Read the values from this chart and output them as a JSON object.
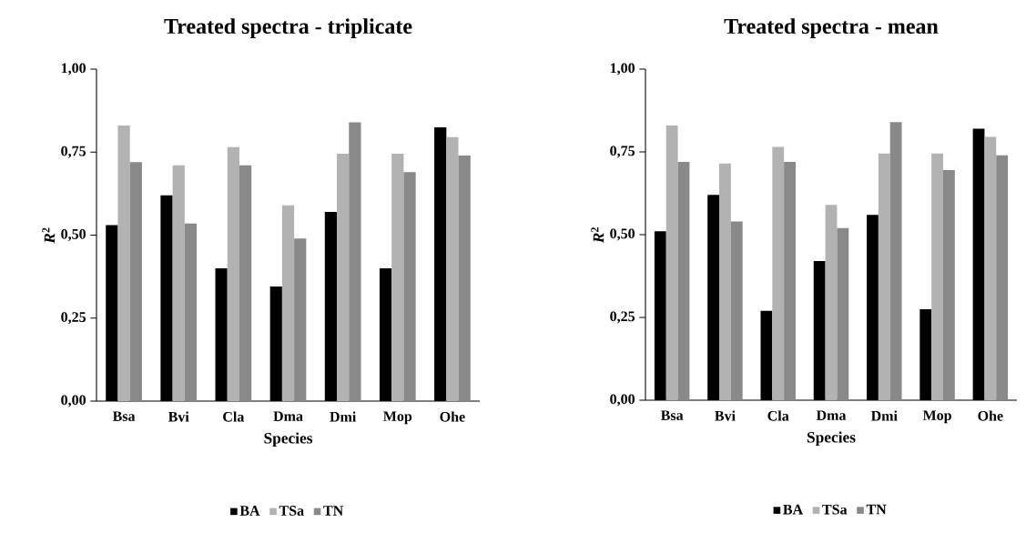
{
  "chart_data": [
    {
      "type": "bar",
      "title": "Treated spectra - triplicate",
      "xlabel": "Species",
      "ylabel": "*R*$^{2}$",
      "categories": [
        "Bsa",
        "Bvi",
        "Cla",
        "Dma",
        "Dmi",
        "Mop",
        "Ohe"
      ],
      "series": [
        {
          "name": "BA",
          "color": "#000000",
          "values": [
            0.53,
            0.62,
            0.4,
            0.345,
            0.57,
            0.4,
            0.825
          ]
        },
        {
          "name": "TSa",
          "color": "#b2b2b2",
          "values": [
            0.83,
            0.71,
            0.765,
            0.59,
            0.745,
            0.745,
            0.795
          ]
        },
        {
          "name": "TN",
          "color": "#898989",
          "values": [
            0.72,
            0.535,
            0.71,
            0.49,
            0.84,
            0.69,
            0.74
          ]
        }
      ],
      "ylim": [
        0,
        1
      ],
      "yticks": [
        {
          "value": 0,
          "label": "0,00"
        },
        {
          "value": 0.25,
          "label": "0,25"
        },
        {
          "value": 0.5,
          "label": "0,50"
        },
        {
          "value": 0.75,
          "label": "0,75"
        },
        {
          "value": 1,
          "label": "1,00"
        }
      ],
      "legend": "bottom",
      "grid": false
    },
    {
      "type": "bar",
      "title": "Treated spectra - mean",
      "xlabel": "Species",
      "ylabel": "*R*$^{2}$",
      "categories": [
        "Bsa",
        "Bvi",
        "Cla",
        "Dma",
        "Dmi",
        "Mop",
        "Ohe"
      ],
      "series": [
        {
          "name": "BA",
          "color": "#000000",
          "values": [
            0.51,
            0.62,
            0.27,
            0.42,
            0.56,
            0.275,
            0.82
          ]
        },
        {
          "name": "TSa",
          "color": "#b2b2b2",
          "values": [
            0.83,
            0.715,
            0.765,
            0.59,
            0.745,
            0.745,
            0.795
          ]
        },
        {
          "name": "TN",
          "color": "#898989",
          "values": [
            0.72,
            0.54,
            0.72,
            0.52,
            0.84,
            0.695,
            0.74
          ]
        }
      ],
      "ylim": [
        0,
        1
      ],
      "yticks": [
        {
          "value": 0,
          "label": "0,00"
        },
        {
          "value": 0.25,
          "label": "0,25"
        },
        {
          "value": 0.5,
          "label": "0,50"
        },
        {
          "value": 0.75,
          "label": "0,75"
        },
        {
          "value": 1,
          "label": "1,00"
        }
      ],
      "legend": "bottom",
      "grid": false
    }
  ]
}
